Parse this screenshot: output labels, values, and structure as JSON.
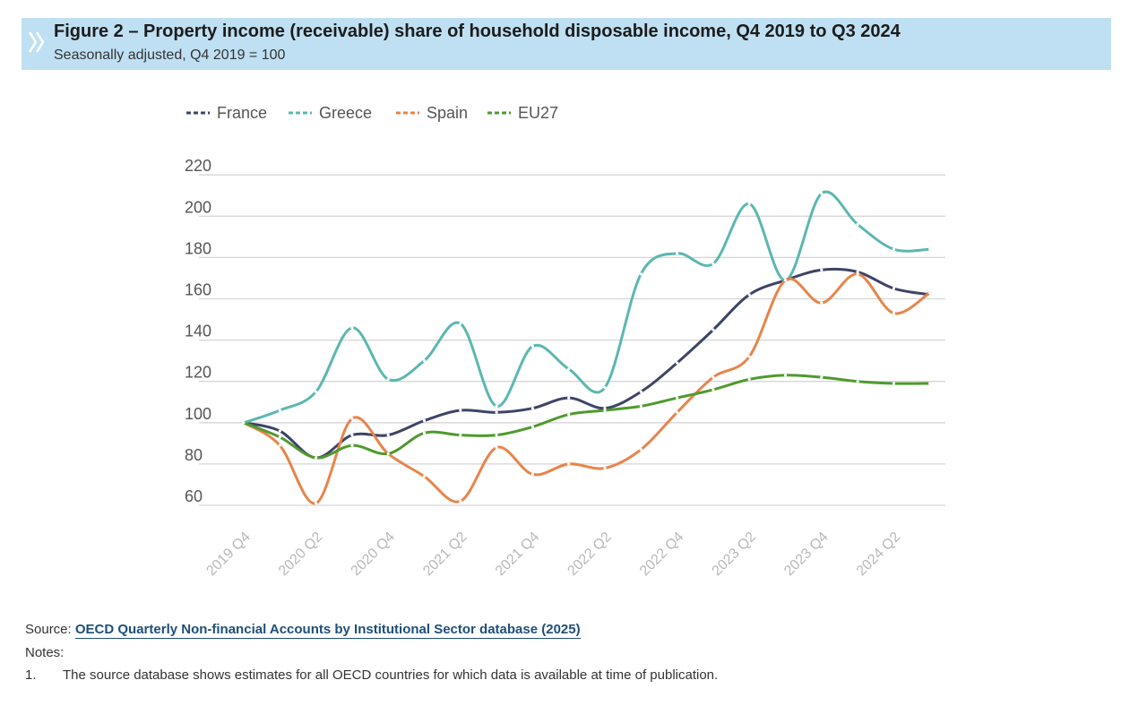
{
  "figure": {
    "title": "Figure 2 – Property income (receivable) share of household disposable income, Q4 2019 to Q3 2024",
    "subtitle": "Seasonally adjusted, Q4 2019 = 100"
  },
  "footer": {
    "source_prefix": "Source: ",
    "source_link": "OECD Quarterly Non-financial Accounts by Institutional Sector database (2025)",
    "notes_label": "Notes:",
    "note_number": "1.",
    "note_text": "The source database shows estimates for all OECD countries for which data is available at time of publication."
  },
  "colors": {
    "header_bg": "#bfe0f3",
    "france": "#3d4466",
    "greece": "#5ab8b0",
    "spain": "#e8844a",
    "eu27": "#4f9a2e",
    "grid": "#d6d6d6"
  },
  "chart_data": {
    "type": "line",
    "title": "Figure 2 – Property income (receivable) share of household disposable income, Q4 2019 to Q3 2024",
    "subtitle": "Seasonally adjusted, Q4 2019 = 100",
    "x": [
      "2019 Q4",
      "2020 Q1",
      "2020 Q2",
      "2020 Q3",
      "2020 Q4",
      "2021 Q1",
      "2021 Q2",
      "2021 Q3",
      "2021 Q4",
      "2022 Q1",
      "2022 Q2",
      "2022 Q3",
      "2022 Q4",
      "2023 Q1",
      "2023 Q2",
      "2023 Q3",
      "2023 Q4",
      "2024 Q1",
      "2024 Q2",
      "2024 Q3"
    ],
    "tick_labels": [
      "2019 Q4",
      "2020 Q2",
      "2020 Q4",
      "2021 Q2",
      "2021 Q4",
      "2022 Q2",
      "2022 Q4",
      "2023 Q2",
      "2023 Q4",
      "2024 Q2"
    ],
    "y_ticks": [
      60,
      80,
      100,
      120,
      140,
      160,
      180,
      200,
      220
    ],
    "ylim": [
      60,
      220
    ],
    "grid": true,
    "legend_position": "top-left",
    "series": [
      {
        "name": "France",
        "color": "#3d4466",
        "values": [
          100,
          96,
          83,
          94,
          94,
          101,
          106,
          105,
          107,
          112,
          107,
          115,
          129,
          145,
          162,
          169,
          174,
          173,
          165,
          162
        ]
      },
      {
        "name": "Greece",
        "color": "#5ab8b0",
        "values": [
          100,
          106,
          115,
          146,
          121,
          130,
          148,
          108,
          137,
          126,
          117,
          172,
          182,
          177,
          206,
          169,
          211,
          196,
          184,
          184
        ]
      },
      {
        "name": "Spain",
        "color": "#e8844a",
        "values": [
          100,
          89,
          61,
          102,
          85,
          74,
          62,
          88,
          75,
          80,
          78,
          87,
          105,
          122,
          132,
          169,
          158,
          172,
          153,
          163
        ]
      },
      {
        "name": "EU27",
        "color": "#4f9a2e",
        "values": [
          100,
          93,
          83,
          89,
          85,
          95,
          94,
          94,
          98,
          104,
          106,
          108,
          112,
          116,
          121,
          123,
          122,
          120,
          119,
          119
        ]
      }
    ]
  }
}
